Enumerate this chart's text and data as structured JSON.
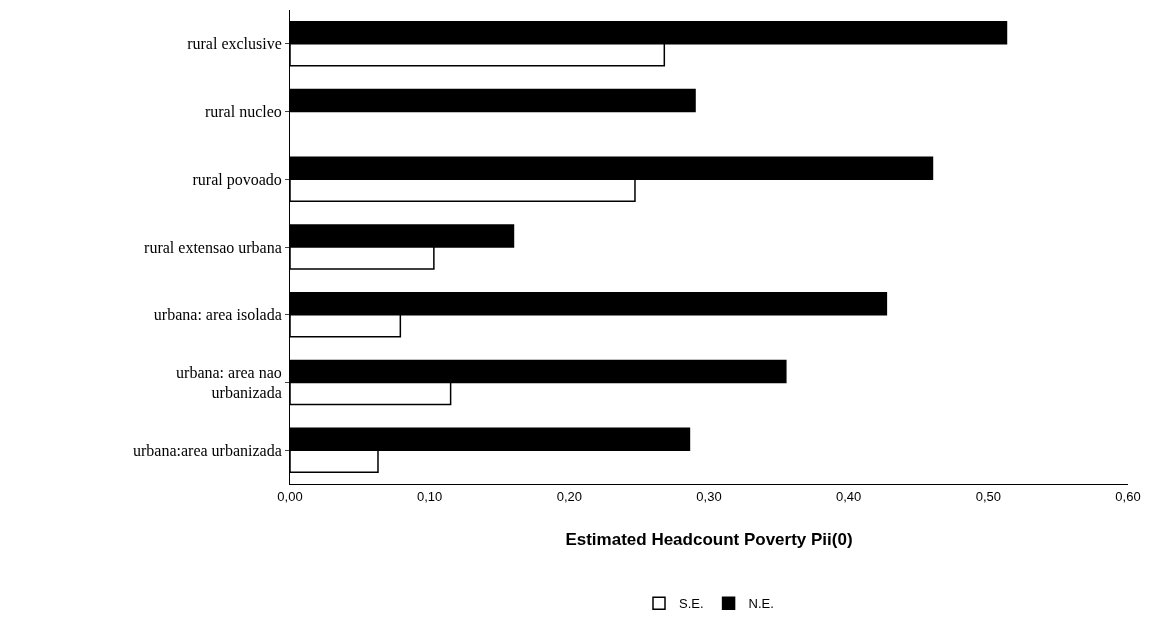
{
  "chart_data": {
    "type": "bar",
    "orientation": "horizontal",
    "xlabel": "Estimated Headcount Poverty Pii(0)",
    "categories": [
      "rural exclusive",
      "rural nucleo",
      "rural povoado",
      "rural extensao urbana",
      "urbana: area isolada",
      "urbana: area nao urbanizada",
      "urbana:area urbanizada"
    ],
    "series": [
      {
        "name": "S.E.",
        "color": "#ffffff",
        "values": [
          0.268,
          null,
          0.247,
          0.103,
          0.079,
          0.115,
          0.063
        ]
      },
      {
        "name": "N.E.",
        "color": "#000000",
        "values": [
          0.513,
          0.29,
          0.46,
          0.16,
          0.427,
          0.355,
          0.286
        ]
      }
    ],
    "xlim": [
      0,
      0.6
    ],
    "xticks": [
      {
        "value": 0,
        "label": "0,00"
      },
      {
        "value": 0.1,
        "label": "0,10"
      },
      {
        "value": 0.2,
        "label": "0,20"
      },
      {
        "value": 0.3,
        "label": "0,30"
      },
      {
        "value": 0.4,
        "label": "0,40"
      },
      {
        "value": 0.5,
        "label": "0,50"
      },
      {
        "value": 0.6,
        "label": "0,60"
      }
    ],
    "grid": false,
    "legend": "bottom"
  }
}
